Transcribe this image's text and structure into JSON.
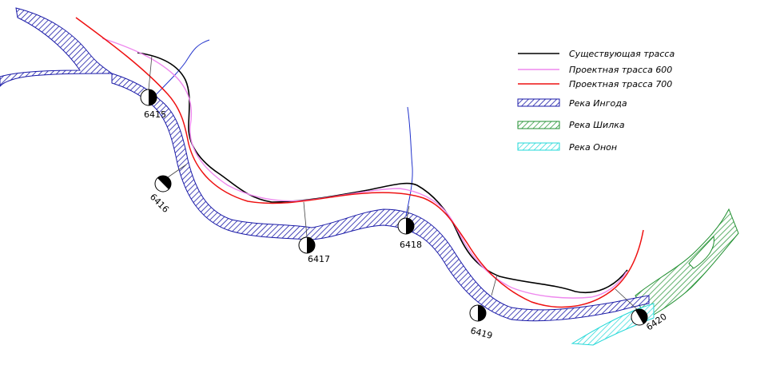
{
  "legend": {
    "existing_route": "Существующая трасса",
    "route_600": "Проектная трасса 600",
    "route_700": "Проектная трасса 700",
    "river_ingoda": "Река Ингода",
    "river_shilka": "Река Шилка",
    "river_onon": "Река Онон"
  },
  "colors": {
    "existing_route": "#000000",
    "route_600": "#ee88ee",
    "route_700": "#ee1111",
    "river_ingoda": "#1a1aa8",
    "river_shilka": "#1f8f2f",
    "river_onon": "#22d8d8",
    "stream": "#2233cc"
  },
  "stations": [
    "6415",
    "6416",
    "6417",
    "6418",
    "6419",
    "6420"
  ]
}
